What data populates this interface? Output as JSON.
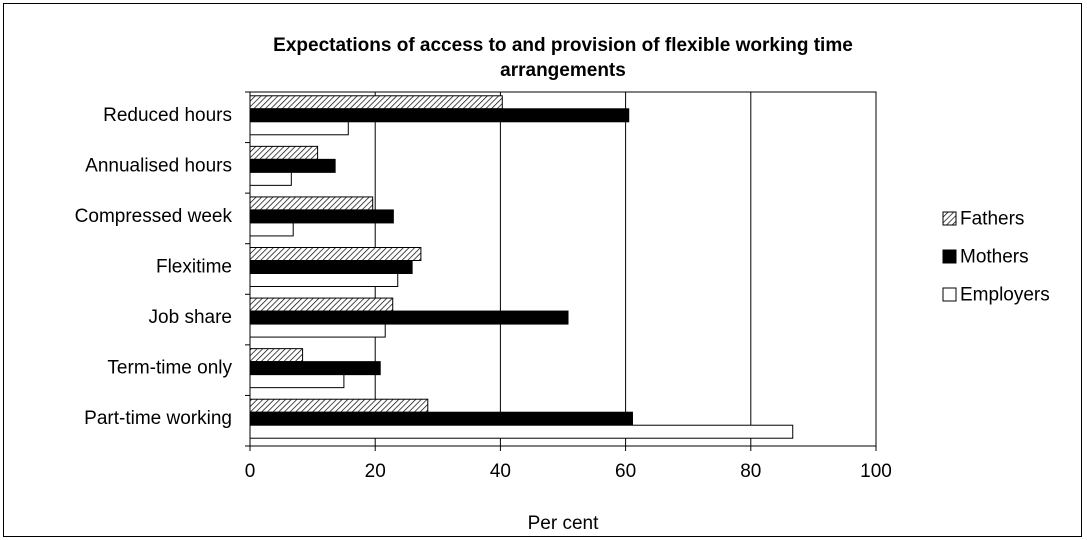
{
  "chart_data": {
    "type": "bar",
    "orientation": "horizontal",
    "title": "Expectations of access to and provision of flexible working time arrangements",
    "title_lines": [
      "Expectations of access to and provision of flexible working time",
      "arrangements"
    ],
    "xlabel": "Per cent",
    "ylabel": "",
    "xlim": [
      0,
      100
    ],
    "x_ticks": [
      "0",
      "20",
      "40",
      "60",
      "80",
      "100"
    ],
    "grid": "vertical",
    "legend_position": "right",
    "categories": [
      "Reduced hours",
      "Annualised hours",
      "Compressed week",
      "Flexitime",
      "Job share",
      "Term-time only",
      "Part-time working"
    ],
    "series": [
      {
        "name": "Fathers",
        "fill": "hatched",
        "color": "#000000",
        "values": [
          40.3,
          10.8,
          19.6,
          27.3,
          22.8,
          8.4,
          28.4
        ]
      },
      {
        "name": "Mothers",
        "fill": "solid",
        "color": "#000000",
        "values": [
          60.5,
          13.6,
          22.9,
          25.9,
          50.8,
          20.8,
          61.1
        ]
      },
      {
        "name": "Employers",
        "fill": "white",
        "color": "#000000",
        "values": [
          15.7,
          6.6,
          6.9,
          23.6,
          21.6,
          15.0,
          86.7
        ]
      }
    ]
  }
}
